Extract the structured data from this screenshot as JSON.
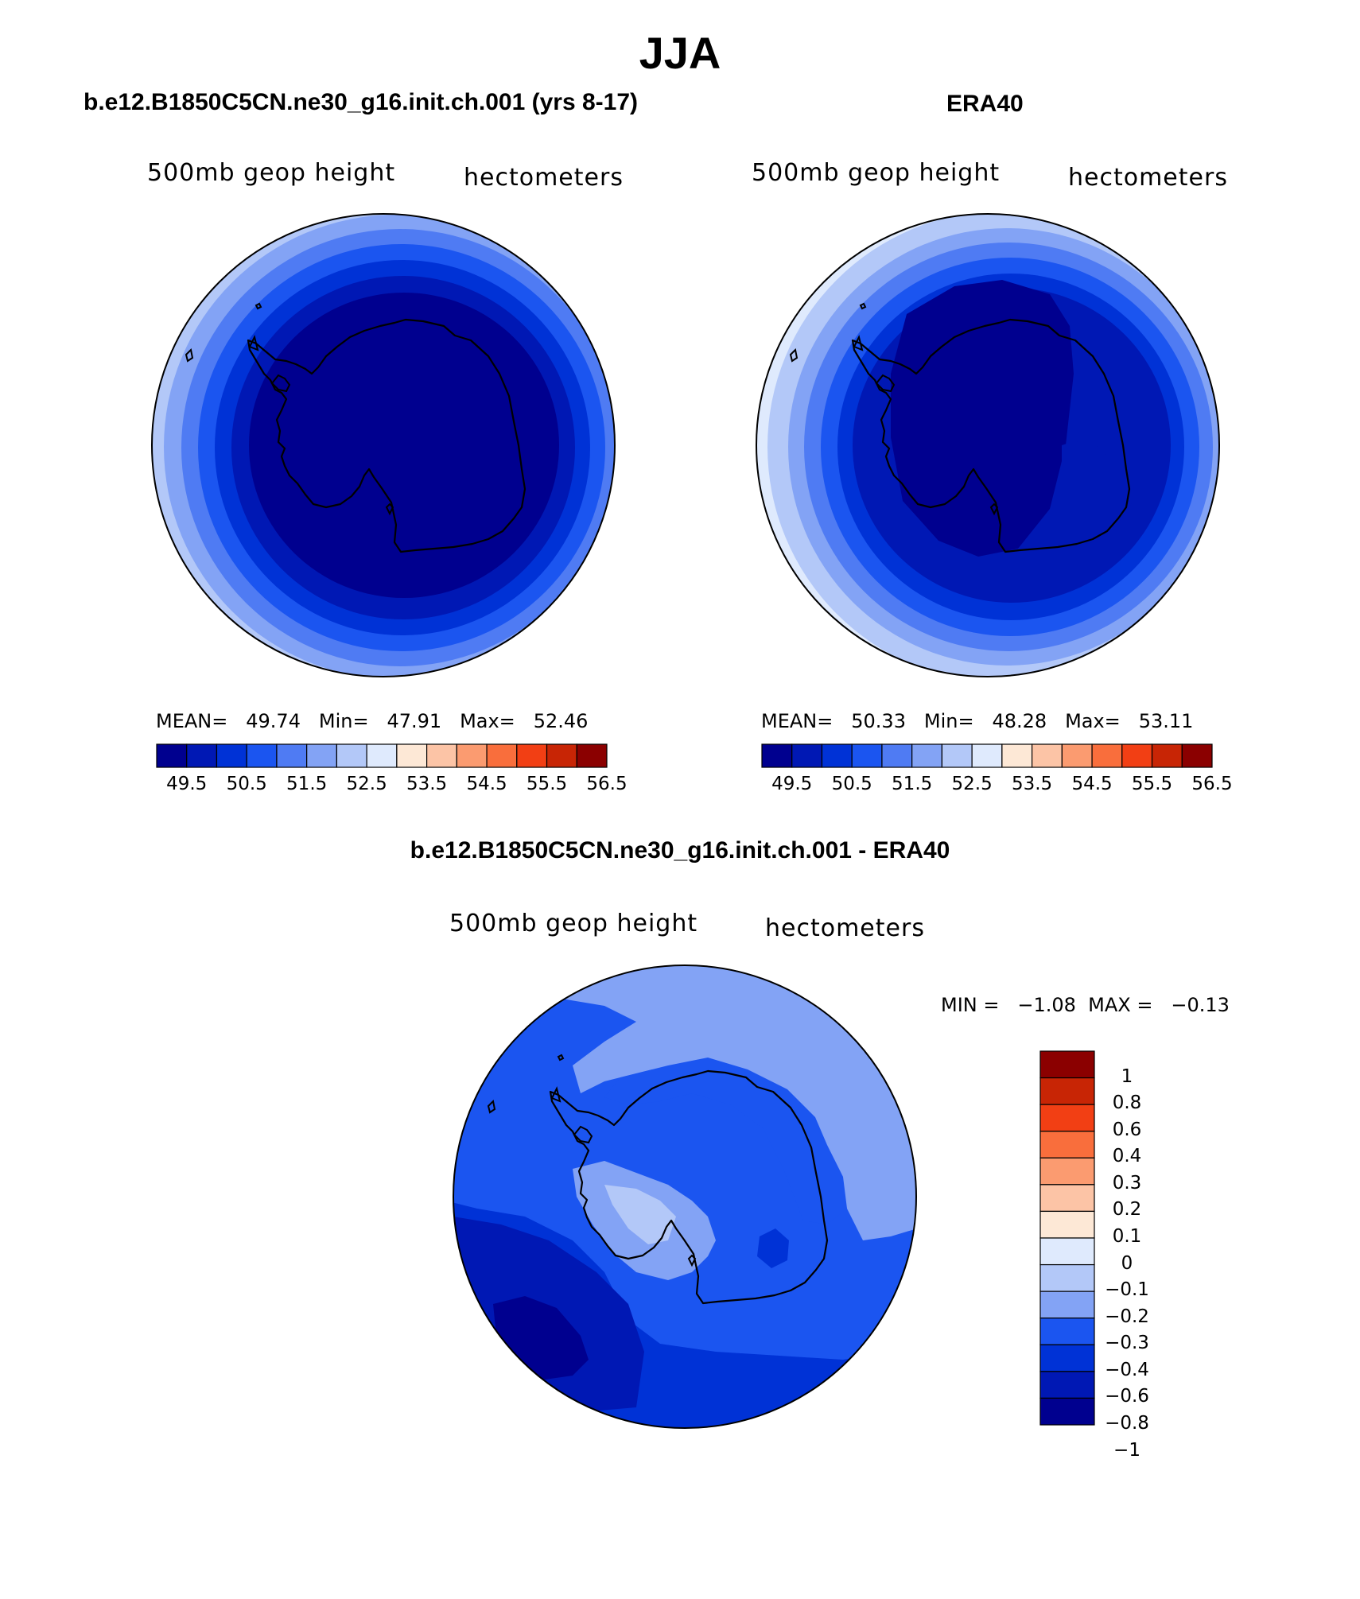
{
  "page_title": "JJA",
  "units_label": "hectometers",
  "variable_label": "500mb geop height",
  "panels": [
    {
      "title": "b.e12.B1850C5CN.ne30_g16.init.ch.001 (yrs 8-17)",
      "subtitle_left": "500mb geop height",
      "subtitle_right": "hectometers",
      "stats": {
        "mean_label": "MEAN=",
        "mean": "49.74",
        "min_label": "Min=",
        "min": "47.91",
        "max_label": "Max=",
        "max": "52.46"
      },
      "colorbar": {
        "colors": [
          "#00008f",
          "#0018b4",
          "#0032d6",
          "#1b55f0",
          "#4f7bf3",
          "#83a3f5",
          "#b3c8f8",
          "#dfeafd",
          "#fde8d6",
          "#fcc4a6",
          "#fb9b70",
          "#f96e3c",
          "#f23f14",
          "#c82505",
          "#8b0000"
        ],
        "tick_labels": [
          "49.5",
          "50.5",
          "51.5",
          "52.5",
          "53.5",
          "54.5",
          "55.5",
          "56.5"
        ]
      }
    },
    {
      "title": "ERA40",
      "subtitle_left": "500mb geop height",
      "subtitle_right": "hectometers",
      "stats": {
        "mean_label": "MEAN=",
        "mean": "50.33",
        "min_label": "Min=",
        "min": "48.28",
        "max_label": "Max=",
        "max": "53.11"
      },
      "colorbar": {
        "colors": [
          "#00008f",
          "#0018b4",
          "#0032d6",
          "#1b55f0",
          "#4f7bf3",
          "#83a3f5",
          "#b3c8f8",
          "#dfeafd",
          "#fde8d6",
          "#fcc4a6",
          "#fb9b70",
          "#f96e3c",
          "#f23f14",
          "#c82505",
          "#8b0000"
        ],
        "tick_labels": [
          "49.5",
          "50.5",
          "51.5",
          "52.5",
          "53.5",
          "54.5",
          "55.5",
          "56.5"
        ]
      }
    },
    {
      "title": "b.e12.B1850C5CN.ne30_g16.init.ch.001 - ERA40",
      "subtitle_left": "500mb geop height",
      "subtitle_right": "hectometers",
      "stats_text": "MIN =   −1.08  MAX =   −0.13",
      "colorbar": {
        "colors_top_to_bottom": [
          "#8b0000",
          "#c82505",
          "#f23f14",
          "#f96e3c",
          "#fb9b70",
          "#fcc4a6",
          "#fde8d6",
          "#dfeafd",
          "#b3c8f8",
          "#83a3f5",
          "#1b55f0",
          "#0032d6",
          "#0018b4",
          "#00008f"
        ],
        "tick_labels": [
          "1",
          "0.8",
          "0.6",
          "0.4",
          "0.3",
          "0.2",
          "0.1",
          "0",
          "−0.1",
          "−0.2",
          "−0.3",
          "−0.4",
          "−0.6",
          "−0.8",
          "−1"
        ]
      }
    }
  ]
}
